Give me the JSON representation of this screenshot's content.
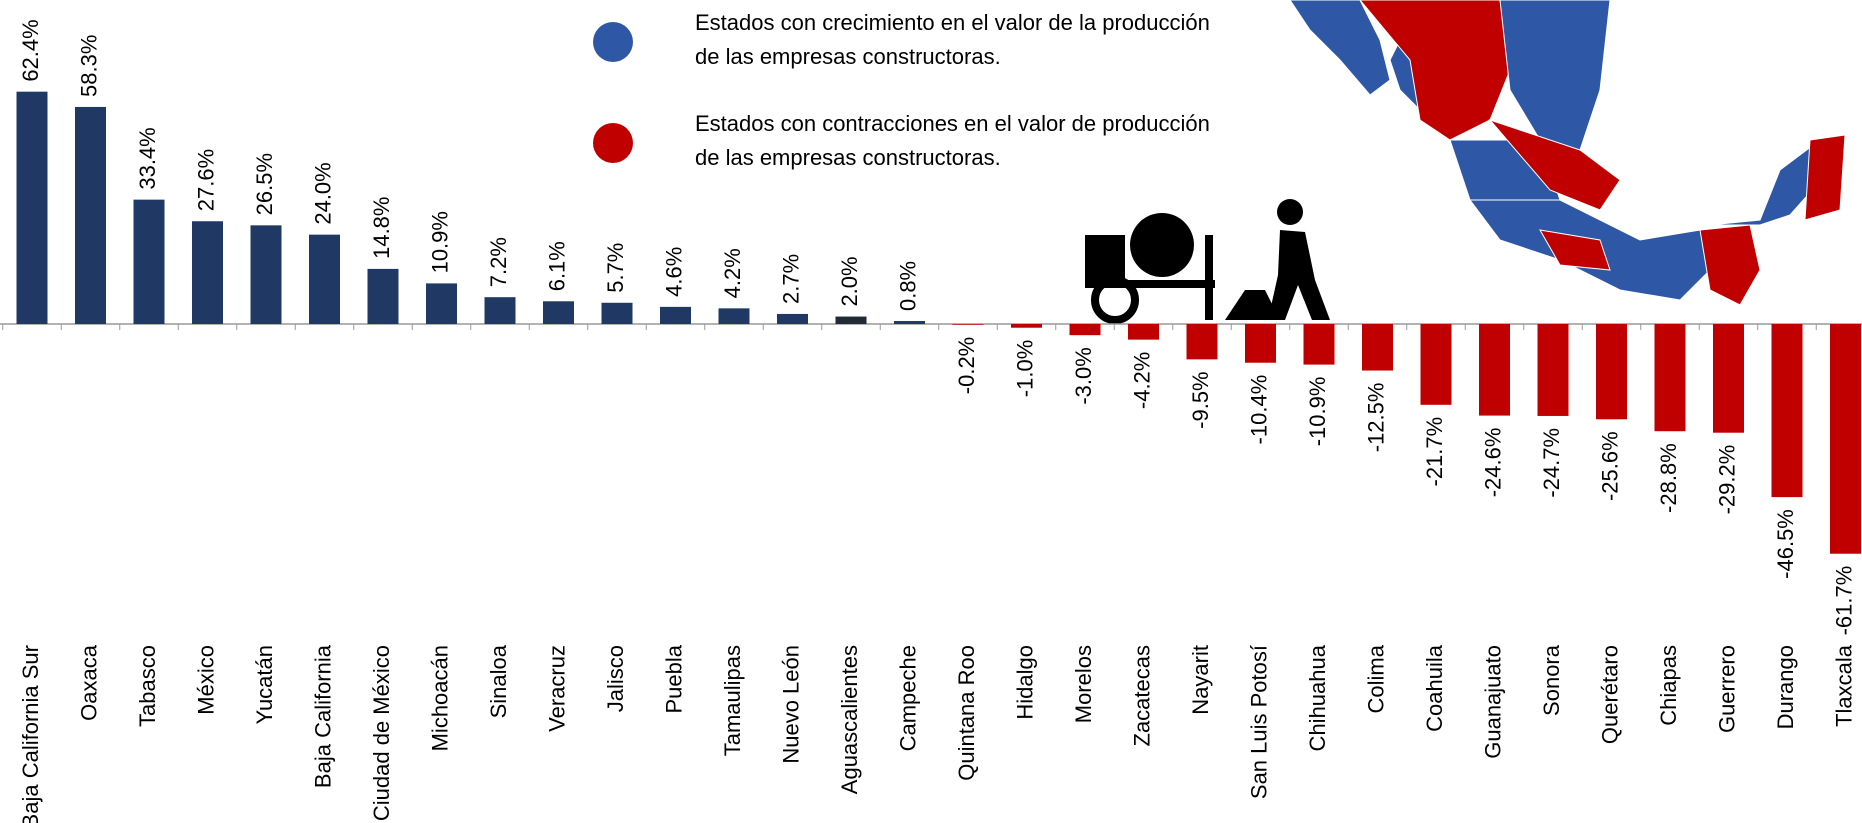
{
  "chart_data": {
    "type": "bar",
    "categories": [
      "Baja California Sur",
      "Oaxaca",
      "Tabasco",
      "México",
      "Yucatán",
      "Baja California",
      "Ciudad de México",
      "Michoacán",
      "Sinaloa",
      "Veracruz",
      "Jalisco",
      "Puebla",
      "Tamaulipas",
      "Nuevo León",
      "Aguascalientes",
      "Campeche",
      "Quintana Roo",
      "Hidalgo",
      "Morelos",
      "Zacatecas",
      "Nayarit",
      "San Luis Potosí",
      "Chihuahua",
      "Colima",
      "Coahuila",
      "Guanajuato",
      "Sonora",
      "Querétaro",
      "Chiapas",
      "Guerrero",
      "Durango",
      "Tlaxcala"
    ],
    "values": [
      62.4,
      58.3,
      33.4,
      27.6,
      26.5,
      24.0,
      14.8,
      10.9,
      7.2,
      6.1,
      5.7,
      4.6,
      4.2,
      2.7,
      2.0,
      0.8,
      -0.2,
      -1.0,
      -3.0,
      -4.2,
      -9.5,
      -10.4,
      -10.9,
      -12.5,
      -21.7,
      -24.6,
      -24.7,
      -25.6,
      -28.8,
      -29.2,
      -46.5,
      -61.7
    ],
    "value_labels": [
      "62.4%",
      "58.3%",
      "33.4%",
      "27.6%",
      "26.5%",
      "24.0%",
      "14.8%",
      "10.9%",
      "7.2%",
      "6.1%",
      "5.7%",
      "4.6%",
      "4.2%",
      "2.7%",
      "2.0%",
      "0.8%",
      "-0.2%",
      "-1.0%",
      "-3.0%",
      "-4.2%",
      "-9.5%",
      "-10.4%",
      "-10.9%",
      "-12.5%",
      "-21.7%",
      "-24.6%",
      "-24.7%",
      "-25.6%",
      "-28.8%",
      "-29.2%",
      "-46.5%",
      "-61.7%"
    ],
    "colors": [
      "#1f3864",
      "#1f3864",
      "#1f3864",
      "#1f3864",
      "#1f3864",
      "#1f3864",
      "#1f3864",
      "#1f3864",
      "#1f3864",
      "#1f3864",
      "#1f3864",
      "#1f3864",
      "#1f3864",
      "#1f3864",
      "#222a35",
      "#1f3864",
      "#c00000",
      "#c00000",
      "#c00000",
      "#c00000",
      "#c00000",
      "#c00000",
      "#c00000",
      "#c00000",
      "#c00000",
      "#c00000",
      "#c00000",
      "#c00000",
      "#c00000",
      "#c00000",
      "#c00000",
      "#c00000"
    ],
    "ylim": [
      -65,
      65
    ],
    "legend": [
      {
        "label": [
          "Estados con crecimiento en el valor de la producción",
          "de las empresas constructoras."
        ],
        "color": "#2e58a6"
      },
      {
        "label": [
          "Estados con contracciones en el valor de producción",
          "de las empresas constructoras."
        ],
        "color": "#c00000"
      }
    ]
  }
}
